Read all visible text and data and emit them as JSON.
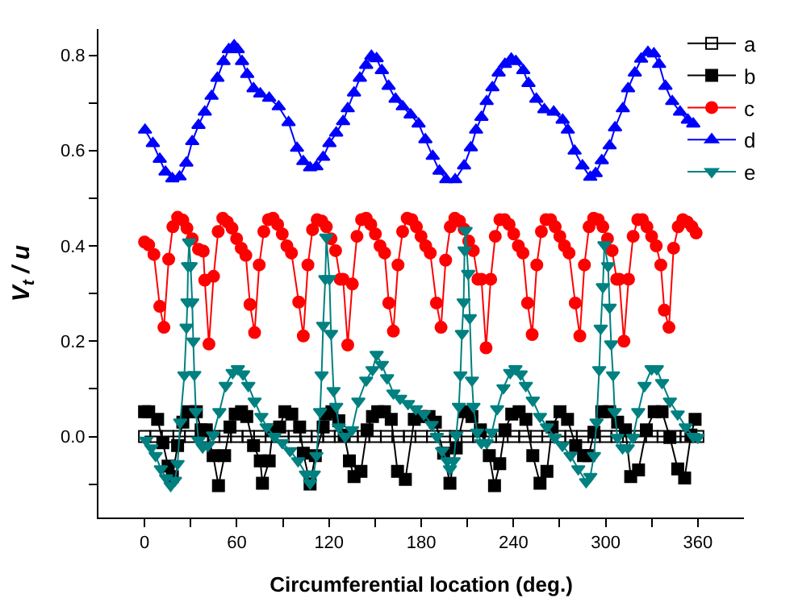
{
  "chart_data": {
    "type": "line",
    "xlabel": "Circumferential location (deg.)",
    "ylabel": "V$_{t}$ / u",
    "xlim": [
      -30,
      390
    ],
    "xticks": [
      0,
      {
        "value": 30,
        "label": null
      },
      60,
      {
        "value": 90,
        "label": null
      },
      120,
      {
        "value": 150,
        "label": null
      },
      180,
      {
        "value": 210,
        "label": null
      },
      240,
      {
        "value": 270,
        "label": null
      },
      300,
      {
        "value": 330,
        "label": null
      },
      360
    ],
    "ylim": [
      -0.17,
      0.855
    ],
    "yticks": [
      {
        "value": -0.1,
        "label": null
      },
      {
        "value": 0,
        "label": "0.0"
      },
      {
        "value": 0.1,
        "label": null
      },
      0.2,
      {
        "value": 0.3,
        "label": null
      },
      0.4,
      {
        "value": 0.5,
        "label": null
      },
      0.6,
      {
        "value": 0.7,
        "label": null
      },
      0.8
    ],
    "legend": "top right",
    "line_style": "solid",
    "series": [
      {
        "name": "a",
        "color": "#000000",
        "marker": "square-open",
        "x": [
          0,
          7.5,
          15,
          22.5,
          30,
          37.5,
          45,
          52.5,
          60,
          67.5,
          75,
          82.5,
          90,
          97.5,
          105,
          112.5,
          120,
          127.5,
          135,
          142.5,
          150,
          157.5,
          165,
          172.5,
          180,
          187.5,
          195,
          202.5,
          210,
          217.5,
          225,
          232.5,
          240,
          247.5,
          255,
          262.5,
          270,
          277.5,
          285,
          292.5,
          300,
          307.5,
          315,
          322.5,
          330,
          337.5,
          345,
          352.5,
          360
        ],
        "values": [
          0,
          0,
          0,
          0,
          0,
          0,
          0,
          0,
          0,
          0,
          0,
          0,
          0,
          0,
          0,
          0,
          0,
          0,
          0,
          0,
          0,
          0,
          0,
          0,
          0,
          0,
          0,
          0,
          0,
          0,
          0,
          0,
          0,
          0,
          0,
          0,
          0,
          0,
          0,
          0,
          0,
          0,
          0,
          0,
          0,
          0,
          0,
          0,
          0
        ]
      },
      {
        "name": "b",
        "color": "#000000",
        "marker": "square",
        "x": [
          0,
          2.7,
          8.5,
          11.9,
          15.3,
          18.1,
          21.5,
          24.9,
          28.3,
          33.7,
          36.8,
          40.2,
          44.6,
          48.1,
          52.1,
          55.6,
          59,
          63.1,
          66.5,
          70.9,
          75.3,
          76.7,
          81.1,
          83.5,
          87.9,
          91.3,
          95.8,
          100.9,
          103.3,
          107.7,
          111.1,
          116.2,
          117.9,
          121.9,
          126.4,
          129.9,
          133.3,
          136.3,
          140.8,
          144.8,
          148.3,
          151.7,
          156.1,
          160.5,
          164.6,
          169.7,
          175.5,
          179.9,
          185.1,
          189.2,
          194.6,
          198.7,
          202.8,
          208.2,
          213,
          218.5,
          224.3,
          227.7,
          231.1,
          234.5,
          238.9,
          243.7,
          248.1,
          252.6,
          257.3,
          261.8,
          265.2,
          270.3,
          275.2,
          280.5,
          285.6,
          289,
          292.4,
          297.5,
          302.6,
          307.8,
          312.9,
          316.3,
          321.4,
          326.5,
          331.6,
          336.7,
          341.8,
          346.9,
          351.4,
          355.5,
          358.2
        ],
        "values": [
          0.052,
          0.052,
          0.036,
          -0.013,
          -0.062,
          -0.084,
          -0.019,
          0.03,
          0.052,
          0.052,
          0.014,
          0.014,
          -0.04,
          -0.103,
          -0.04,
          0.02,
          0.047,
          0.052,
          0.042,
          -0.019,
          -0.051,
          -0.098,
          -0.051,
          0.014,
          0.02,
          0.052,
          0.047,
          0.02,
          -0.035,
          -0.1,
          -0.04,
          0.02,
          0.047,
          0.052,
          0.033,
          0.003,
          -0.051,
          -0.084,
          -0.073,
          0.014,
          0.042,
          0.052,
          0.052,
          0.036,
          -0.073,
          -0.09,
          0.036,
          0.042,
          0.042,
          0.03,
          -0.035,
          -0.098,
          -0.024,
          0.052,
          0.042,
          0.014,
          -0.04,
          -0.103,
          -0.057,
          0.014,
          0.047,
          0.052,
          0.036,
          -0.04,
          -0.098,
          -0.073,
          0.02,
          0.052,
          0.036,
          -0.019,
          -0.04,
          -0.04,
          0.009,
          0.052,
          0.052,
          0.03,
          0.014,
          -0.084,
          -0.07,
          0.014,
          0.052,
          0.052,
          -0.002,
          -0.068,
          -0.087,
          0.003,
          0.036
        ]
      },
      {
        "name": "c",
        "color": "#ff0000",
        "marker": "circle",
        "x": [
          0,
          2.7,
          6.1,
          9.9,
          12.6,
          15.7,
          18.4,
          21.5,
          24.9,
          27.6,
          31,
          35.1,
          38.2,
          39.2,
          41.9,
          44.9,
          47.9,
          50.9,
          53.9,
          56.9,
          59.9,
          62.9,
          65.9,
          68.6,
          71.6,
          74.6,
          77.6,
          80.6,
          83.6,
          86.6,
          89.6,
          92.6,
          95.6,
          100.3,
          103.3,
          106.3,
          109.3,
          112.3,
          115.3,
          118.3,
          121.3,
          124.3,
          127.3,
          129.2,
          132.2,
          135.2,
          138.2,
          141.2,
          144.2,
          147.2,
          150.2,
          153.2,
          156.2,
          158.9,
          161.9,
          164.9,
          167.9,
          170.9,
          173.9,
          176.9,
          179.9,
          182.9,
          185.9,
          189.9,
          192.9,
          195.9,
          198.9,
          201.9,
          204.9,
          207.9,
          210.9,
          213.9,
          216.9,
          219.2,
          222.2,
          225.2,
          228.2,
          231.2,
          234.2,
          237.2,
          240.2,
          243.2,
          246.2,
          249.2,
          252.2,
          255.2,
          258.2,
          261.2,
          264.2,
          267.2,
          270.2,
          273.2,
          276.2,
          280.2,
          283.2,
          286.2,
          289.2,
          292.2,
          295.2,
          298.2,
          301.2,
          304.2,
          307.2,
          308.9,
          311.9,
          314.9,
          317.9,
          320.9,
          323.9,
          326.9,
          329.9,
          332.9,
          335.9,
          338.2,
          341.2,
          344.2,
          347.2,
          350.2,
          353.2,
          356.2,
          358.9
        ],
        "values": [
          0.408,
          0.402,
          0.382,
          0.273,
          0.229,
          0.372,
          0.44,
          0.46,
          0.454,
          0.437,
          0.415,
          0.393,
          0.389,
          0.328,
          0.194,
          0.336,
          0.43,
          0.458,
          0.45,
          0.437,
          0.415,
          0.395,
          0.38,
          0.277,
          0.218,
          0.36,
          0.43,
          0.455,
          0.458,
          0.445,
          0.425,
          0.4,
          0.385,
          0.282,
          0.211,
          0.36,
          0.434,
          0.455,
          0.452,
          0.44,
          0.415,
          0.39,
          0.33,
          0.33,
          0.192,
          0.32,
          0.42,
          0.455,
          0.458,
          0.445,
          0.425,
          0.4,
          0.385,
          0.28,
          0.221,
          0.36,
          0.43,
          0.458,
          0.455,
          0.44,
          0.42,
          0.4,
          0.385,
          0.28,
          0.229,
          0.37,
          0.44,
          0.458,
          0.452,
          0.435,
          0.41,
          0.39,
          0.33,
          0.33,
          0.186,
          0.33,
          0.42,
          0.455,
          0.455,
          0.445,
          0.425,
          0.4,
          0.385,
          0.28,
          0.214,
          0.36,
          0.43,
          0.455,
          0.455,
          0.44,
          0.42,
          0.4,
          0.385,
          0.28,
          0.211,
          0.36,
          0.44,
          0.458,
          0.455,
          0.44,
          0.415,
          0.39,
          0.33,
          0.33,
          0.2,
          0.33,
          0.42,
          0.455,
          0.455,
          0.44,
          0.42,
          0.4,
          0.36,
          0.265,
          0.229,
          0.395,
          0.44,
          0.455,
          0.45,
          0.44,
          0.427
        ]
      },
      {
        "name": "d",
        "color": "#0000ff",
        "marker": "triangle",
        "x": [
          0.3,
          5.4,
          9.9,
          13.6,
          18.1,
          22.8,
          27.2,
          31,
          35.1,
          39.2,
          43.6,
          47.4,
          51.4,
          54.8,
          58.3,
          60.6,
          63.4,
          66.8,
          70.9,
          75.3,
          81.1,
          87.3,
          93.7,
          99.2,
          103.3,
          107.7,
          111.8,
          116.2,
          120.3,
          124.7,
          129.2,
          132.2,
          136.3,
          140.1,
          144.2,
          147.6,
          151,
          154.4,
          158.8,
          163.3,
          168,
          173.1,
          178.3,
          182.7,
          187.5,
          191.9,
          196.3,
          202.1,
          207.9,
          212.3,
          215.7,
          219.2,
          222.6,
          226.3,
          230.4,
          234.5,
          238.6,
          241.6,
          246.4,
          249.8,
          254.9,
          260.1,
          266.2,
          272,
          275.4,
          279.8,
          284.9,
          290,
          293.5,
          297.5,
          302.6,
          306.1,
          311.2,
          314.6,
          319,
          323.1,
          327.5,
          331.4,
          334.8,
          338.9,
          343.3,
          348.4,
          353.5,
          357
        ],
        "values": [
          0.643,
          0.615,
          0.582,
          0.555,
          0.541,
          0.545,
          0.574,
          0.619,
          0.653,
          0.681,
          0.714,
          0.752,
          0.787,
          0.812,
          0.82,
          0.812,
          0.787,
          0.76,
          0.73,
          0.719,
          0.71,
          0.692,
          0.659,
          0.605,
          0.577,
          0.564,
          0.566,
          0.586,
          0.615,
          0.637,
          0.661,
          0.688,
          0.721,
          0.752,
          0.779,
          0.798,
          0.793,
          0.768,
          0.735,
          0.708,
          0.692,
          0.675,
          0.656,
          0.623,
          0.588,
          0.557,
          0.539,
          0.539,
          0.568,
          0.606,
          0.643,
          0.67,
          0.703,
          0.732,
          0.763,
          0.781,
          0.792,
          0.787,
          0.768,
          0.741,
          0.708,
          0.686,
          0.681,
          0.664,
          0.643,
          0.599,
          0.568,
          0.544,
          0.552,
          0.579,
          0.61,
          0.648,
          0.688,
          0.73,
          0.763,
          0.792,
          0.806,
          0.803,
          0.781,
          0.735,
          0.703,
          0.681,
          0.664,
          0.656
        ]
      },
      {
        "name": "e",
        "color": "#008080",
        "marker": "triangle-down",
        "x": [
          1,
          4.4,
          7.2,
          10.6,
          14,
          17,
          19.8,
          21.5,
          23.2,
          25.9,
          27.3,
          27.9,
          28.3,
          29,
          30,
          31,
          31.7,
          32.4,
          33.4,
          35.1,
          37.8,
          41.2,
          44.6,
          48.7,
          52.8,
          57.3,
          60.7,
          64.1,
          67.5,
          71.6,
          76,
          79.4,
          84.5,
          89.6,
          94.7,
          99.9,
          105,
          107.7,
          110.1,
          111.8,
          114.2,
          115.2,
          116.2,
          117.6,
          118.3,
          120.3,
          121.3,
          123,
          124.7,
          126.4,
          130.5,
          135,
          139.1,
          144.2,
          148.3,
          151,
          154.4,
          157.8,
          161.9,
          166.3,
          171.4,
          176.5,
          181.7,
          186.8,
          190.2,
          193.6,
          197,
          198.7,
          201.1,
          202.8,
          204.5,
          205.5,
          206.5,
          207.6,
          208.2,
          208.9,
          210.6,
          211.6,
          213,
          214,
          216.4,
          219.2,
          222.6,
          226,
          229.4,
          233.5,
          237.9,
          241.3,
          244.7,
          248.1,
          252.6,
          257.3,
          261.8,
          266.9,
          271.9,
          277.1,
          282.2,
          287.3,
          290,
          292.4,
          294.1,
          295.8,
          296.8,
          298.2,
          299.2,
          301.6,
          302.6,
          303.6,
          304.8,
          305.9,
          307.6,
          311,
          314.4,
          317.8,
          321.2,
          325.3,
          329.9,
          333.3,
          336.7,
          341.8,
          346.9,
          352.1,
          357,
          360
        ],
        "values": [
          -0.008,
          -0.024,
          -0.04,
          -0.068,
          -0.087,
          -0.103,
          -0.092,
          -0.057,
          0.03,
          0.129,
          0.229,
          0.282,
          0.358,
          0.408,
          0.358,
          0.282,
          0.2,
          0.13,
          0.052,
          -0.008,
          -0.022,
          -0.019,
          0.003,
          0.052,
          0.107,
          0.134,
          0.142,
          0.131,
          0.107,
          0.074,
          0.042,
          0.02,
          0,
          -0.013,
          -0.03,
          -0.051,
          -0.079,
          -0.098,
          -0.079,
          -0.04,
          0.052,
          0.129,
          0.233,
          0.331,
          0.418,
          0.331,
          0.216,
          0.096,
          0.063,
          0.02,
          0,
          0.014,
          0.074,
          0.118,
          0.14,
          0.172,
          0.151,
          0.123,
          0.091,
          0.08,
          0.069,
          0.058,
          0.047,
          0.025,
          0,
          -0.03,
          -0.051,
          -0.068,
          -0.051,
          0.003,
          0.063,
          0.129,
          0.216,
          0.282,
          0.391,
          0.432,
          0.342,
          0.249,
          0.118,
          0.063,
          0.009,
          -0.013,
          -0.013,
          0.009,
          0.058,
          0.102,
          0.134,
          0.142,
          0.131,
          0.107,
          0.076,
          0.042,
          0.02,
          -0.002,
          -0.019,
          -0.04,
          -0.068,
          -0.095,
          -0.084,
          -0.04,
          0.03,
          0.14,
          0.227,
          0.314,
          0.402,
          0.358,
          0.271,
          0.194,
          0.129,
          0.052,
          -0.002,
          -0.024,
          -0.024,
          -0.002,
          0.052,
          0.107,
          0.142,
          0.142,
          0.113,
          0.074,
          0.047,
          0.02,
          0,
          -0.002
        ]
      }
    ]
  }
}
